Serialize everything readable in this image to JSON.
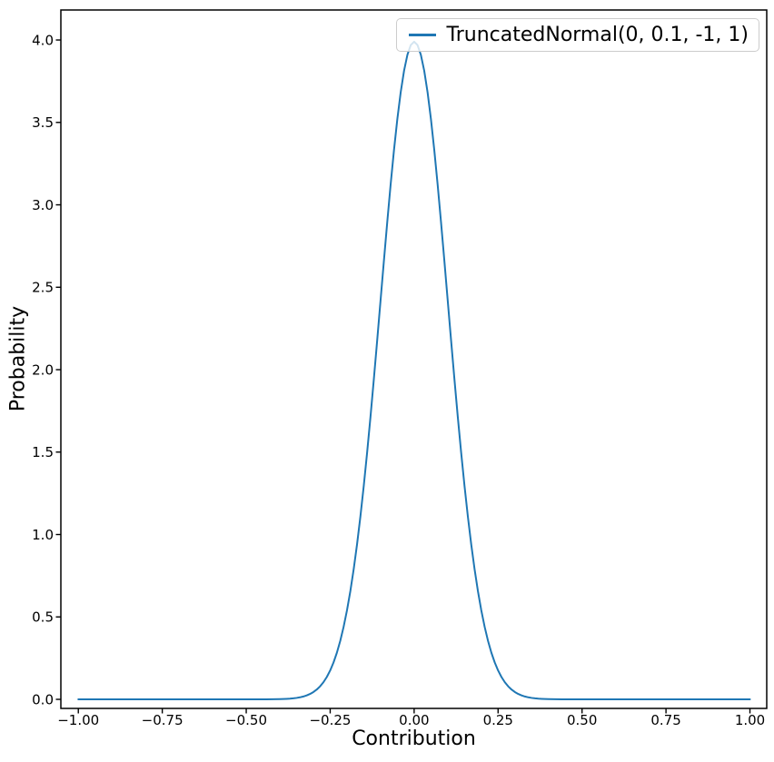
{
  "colors": {
    "line": "#1f77b4",
    "axes": "#000000",
    "tick_label": "#000000",
    "legend_border": "#cccccc",
    "background": "#ffffff"
  },
  "legend": {
    "entry_label": "TruncatedNormal(0, 0.1, -1, 1)",
    "position": "upper right"
  },
  "chart_data": {
    "type": "line",
    "title": "",
    "xlabel": "Contribution",
    "ylabel": "Probability",
    "xlim": [
      -1.052,
      1.05
    ],
    "ylim": [
      -0.055,
      4.182
    ],
    "grid": false,
    "legend_position": "upper right",
    "xticks": [
      {
        "v": -1.0,
        "label": "−1.00"
      },
      {
        "v": -0.75,
        "label": "−0.75"
      },
      {
        "v": -0.5,
        "label": "−0.50"
      },
      {
        "v": -0.25,
        "label": "−0.25"
      },
      {
        "v": 0.0,
        "label": "0.00"
      },
      {
        "v": 0.25,
        "label": "0.25"
      },
      {
        "v": 0.5,
        "label": "0.50"
      },
      {
        "v": 0.75,
        "label": "0.75"
      },
      {
        "v": 1.0,
        "label": "1.00"
      }
    ],
    "yticks": [
      {
        "v": 0.0,
        "label": "0.0"
      },
      {
        "v": 0.5,
        "label": "0.5"
      },
      {
        "v": 1.0,
        "label": "1.0"
      },
      {
        "v": 1.5,
        "label": "1.5"
      },
      {
        "v": 2.0,
        "label": "2.0"
      },
      {
        "v": 2.5,
        "label": "2.5"
      },
      {
        "v": 3.0,
        "label": "3.0"
      },
      {
        "v": 3.5,
        "label": "3.5"
      },
      {
        "v": 4.0,
        "label": "4.0"
      }
    ],
    "series": [
      {
        "name": "TruncatedNormal(0, 0.1, -1, 1)",
        "color": "#1f77b4",
        "x": [
          -1.0,
          -0.9,
          -0.8,
          -0.7,
          -0.6,
          -0.5,
          -0.48,
          -0.46,
          -0.44,
          -0.42,
          -0.4,
          -0.39,
          -0.38,
          -0.37,
          -0.36,
          -0.35,
          -0.34,
          -0.33,
          -0.32,
          -0.31,
          -0.3,
          -0.29,
          -0.28,
          -0.27,
          -0.26,
          -0.25,
          -0.24,
          -0.23,
          -0.22,
          -0.21,
          -0.2,
          -0.19,
          -0.18,
          -0.17,
          -0.16,
          -0.15,
          -0.14,
          -0.13,
          -0.12,
          -0.11,
          -0.1,
          -0.09,
          -0.08,
          -0.07,
          -0.06,
          -0.05,
          -0.04,
          -0.03,
          -0.02,
          -0.01,
          0.0,
          0.01,
          0.02,
          0.03,
          0.04,
          0.05,
          0.06,
          0.07,
          0.08,
          0.09,
          0.1,
          0.11,
          0.12,
          0.13,
          0.14,
          0.15,
          0.16,
          0.17,
          0.18,
          0.19,
          0.2,
          0.21,
          0.22,
          0.23,
          0.24,
          0.25,
          0.26,
          0.27,
          0.28,
          0.29,
          0.3,
          0.31,
          0.32,
          0.33,
          0.34,
          0.35,
          0.36,
          0.37,
          0.38,
          0.39,
          0.4,
          0.42,
          0.44,
          0.46,
          0.48,
          0.5,
          0.6,
          0.7,
          0.8,
          0.9,
          1.0
        ],
        "y": [
          0.0,
          0.0,
          0.0,
          0.0,
          0.0,
          0.0,
          0.0,
          0.0001,
          0.0002,
          0.0006,
          0.0013,
          0.002,
          0.0029,
          0.0042,
          0.0061,
          0.0087,
          0.0123,
          0.0172,
          0.0238,
          0.0326,
          0.0443,
          0.0595,
          0.0791,
          0.1042,
          0.1358,
          0.1753,
          0.2239,
          0.2832,
          0.3547,
          0.4398,
          0.5399,
          0.6562,
          0.7895,
          0.9405,
          1.1093,
          1.2952,
          1.4973,
          1.7137,
          1.9419,
          2.1785,
          2.4197,
          2.6609,
          2.8967,
          3.1225,
          3.3322,
          3.5207,
          3.6827,
          3.8139,
          3.9104,
          3.9695,
          3.9894,
          3.9695,
          3.9104,
          3.8139,
          3.6827,
          3.5207,
          3.3322,
          3.1225,
          2.8967,
          2.6609,
          2.4197,
          2.1785,
          1.9419,
          1.7137,
          1.4973,
          1.2952,
          1.1093,
          0.9405,
          0.7895,
          0.6562,
          0.5399,
          0.4398,
          0.3547,
          0.2832,
          0.2239,
          0.1753,
          0.1358,
          0.1042,
          0.0791,
          0.0595,
          0.0443,
          0.0326,
          0.0238,
          0.0172,
          0.0123,
          0.0087,
          0.0061,
          0.0042,
          0.0029,
          0.002,
          0.0013,
          0.0006,
          0.0002,
          0.0001,
          0.0,
          0.0,
          0.0,
          0.0,
          0.0,
          0.0,
          0.0
        ]
      }
    ]
  }
}
